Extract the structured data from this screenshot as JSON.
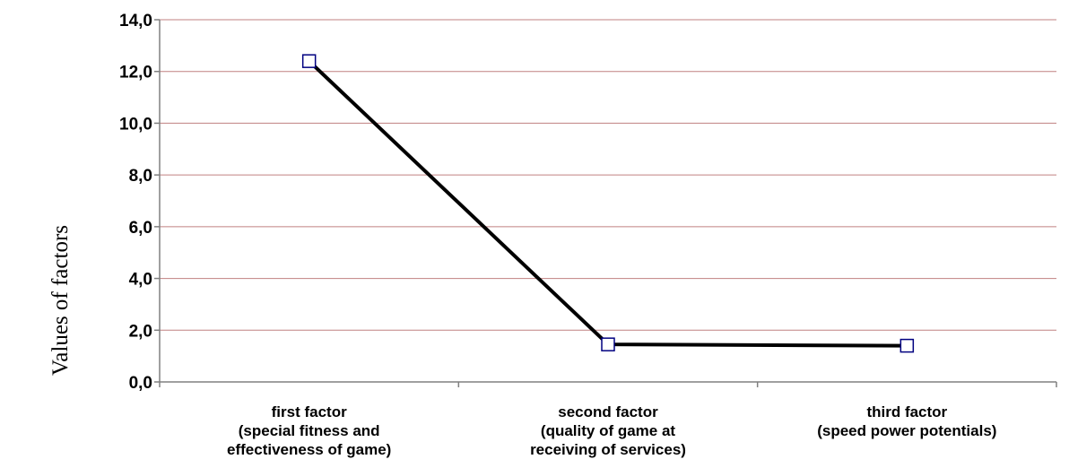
{
  "chart_data": {
    "type": "line",
    "title": "",
    "ylabel": "Values of factors",
    "xlabel": "",
    "ylim": [
      0,
      14
    ],
    "ytick_labels": [
      "0,0",
      "2,0",
      "4,0",
      "6,0",
      "8,0",
      "10,0",
      "12,0",
      "14,0"
    ],
    "categories": [
      [
        "first factor",
        "(special fitness and",
        "effectiveness of game)"
      ],
      [
        "second factor",
        "(quality of game at",
        "receiving of services)"
      ],
      [
        "third factor",
        "(speed power potentials)"
      ]
    ],
    "series": [
      {
        "values": [
          12.4,
          1.45,
          1.4
        ]
      }
    ],
    "grid": true,
    "colors": {
      "line": "#000000",
      "marker_edge": "#000080",
      "marker_fill": "#ffffff",
      "grid": "#c08080",
      "axis": "#808080"
    }
  }
}
